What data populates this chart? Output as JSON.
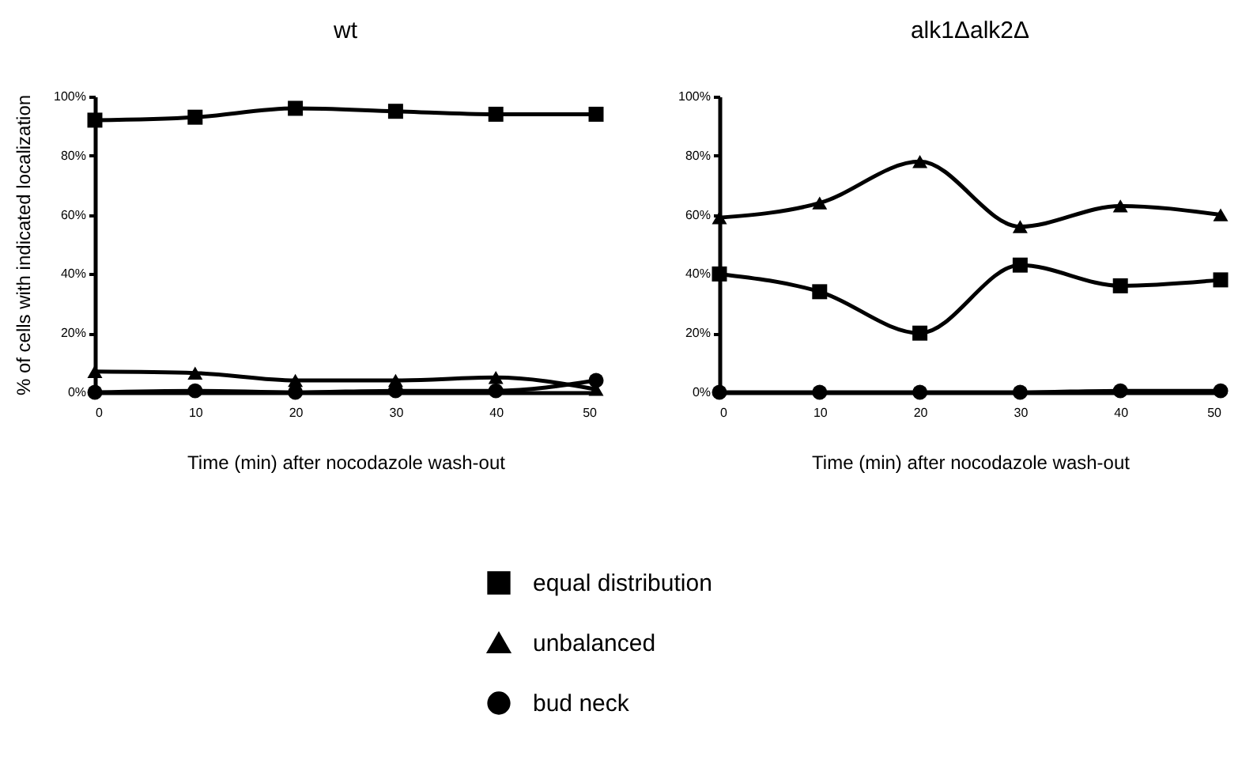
{
  "chart_data": [
    {
      "type": "line",
      "title": "wt",
      "xlabel": "Time (min) after nocodazole wash-out",
      "ylabel": "% of cells with indicated localization",
      "x": [
        0,
        10,
        20,
        30,
        40,
        50
      ],
      "xlim": [
        0,
        50
      ],
      "xticks": [
        0,
        10,
        20,
        30,
        40,
        50
      ],
      "ylim": [
        0,
        100
      ],
      "yticks": [
        {
          "value": 0,
          "label": "0%"
        },
        {
          "value": 20,
          "label": "20%"
        },
        {
          "value": 40,
          "label": "40%"
        },
        {
          "value": 60,
          "label": "60%"
        },
        {
          "value": 80,
          "label": "80%"
        },
        {
          "value": 100,
          "label": "100%"
        }
      ],
      "legend": "bottom",
      "grid": false,
      "series": [
        {
          "name": "equal distribution",
          "color": "#000000",
          "marker": "square",
          "values": [
            92,
            93,
            96,
            95,
            94,
            94
          ]
        },
        {
          "name": "unbalanced",
          "color": "#000000",
          "marker": "triangle",
          "values": [
            7,
            6.5,
            4,
            4,
            5,
            1
          ]
        },
        {
          "name": "bud neck",
          "color": "#000000",
          "marker": "circle",
          "values": [
            0,
            0.5,
            0,
            0.5,
            0.5,
            4
          ]
        }
      ]
    },
    {
      "type": "line",
      "title": "alk1Δalk2Δ",
      "xlabel": "Time (min) after nocodazole wash-out",
      "x": [
        0,
        10,
        20,
        30,
        40,
        50
      ],
      "xlim": [
        0,
        50
      ],
      "xticks": [
        0,
        10,
        20,
        30,
        40,
        50
      ],
      "ylim": [
        0,
        100
      ],
      "yticks": [
        {
          "value": 0,
          "label": "0%"
        },
        {
          "value": 20,
          "label": "20%"
        },
        {
          "value": 40,
          "label": "40%"
        },
        {
          "value": 60,
          "label": "60%"
        },
        {
          "value": 80,
          "label": "80%"
        },
        {
          "value": 100,
          "label": "100%"
        }
      ],
      "grid": false,
      "series": [
        {
          "name": "equal distribution",
          "color": "#000000",
          "marker": "square",
          "values": [
            40,
            34,
            20,
            43,
            36,
            38
          ]
        },
        {
          "name": "unbalanced",
          "color": "#000000",
          "marker": "triangle",
          "values": [
            59,
            64,
            78,
            56,
            63,
            60
          ]
        },
        {
          "name": "bud neck",
          "color": "#000000",
          "marker": "circle",
          "values": [
            0,
            0,
            0,
            0,
            0.5,
            0.5
          ]
        }
      ]
    }
  ]
}
